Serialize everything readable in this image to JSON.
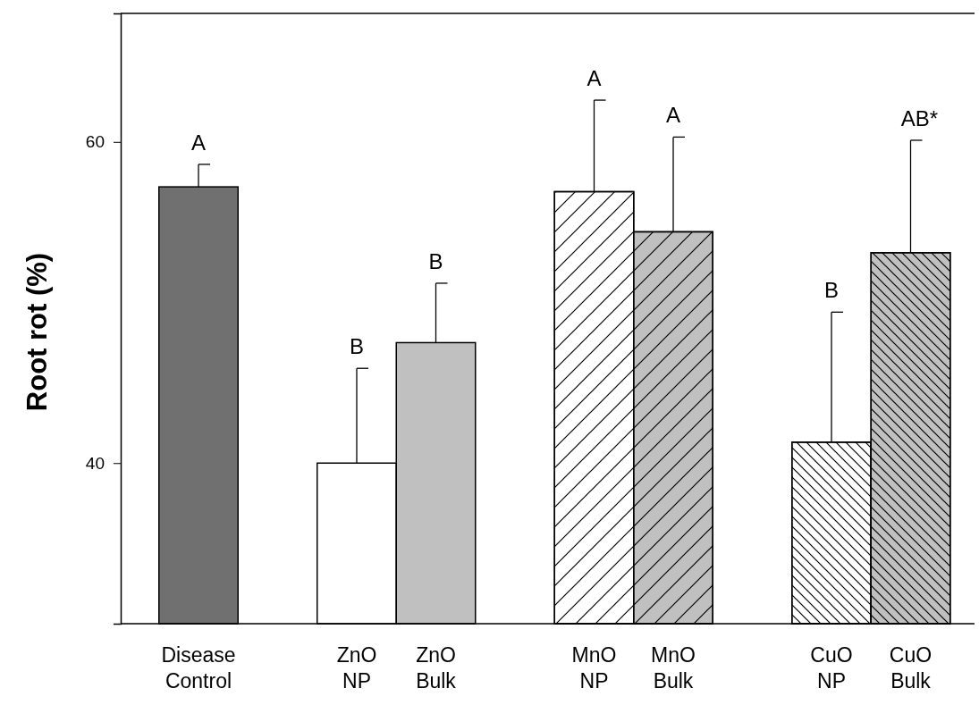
{
  "chart_data": {
    "type": "bar",
    "ylabel": "Root rot (%)",
    "categories": [
      "Disease Control",
      "ZnO NP",
      "ZnO Bulk",
      "MnO NP",
      "MnO Bulk",
      "CuO NP",
      "CuO Bulk"
    ],
    "values": [
      57.2,
      40,
      47.5,
      56.9,
      54.4,
      41.3,
      53.1
    ],
    "errors": [
      1.4,
      5.9,
      3.7,
      5.7,
      5.9,
      8.1,
      7.0
    ],
    "colors": [
      "#707070",
      "#ffffff",
      "#c0c0c0",
      "#ffffff",
      "#c0c0c0",
      "#ffffff",
      "#c0c0c0"
    ],
    "ylim": [
      30,
      68
    ],
    "yticks": [
      40,
      60
    ],
    "grid": false,
    "annotations": [
      {
        "text": "A",
        "x": "Disease Control",
        "y": 58.6
      },
      {
        "text": "B",
        "x": "ZnO NP",
        "y": 45.9
      },
      {
        "text": "B",
        "x": "ZnO Bulk",
        "y": 51.2
      },
      {
        "text": "A",
        "x": "MnO NP",
        "y": 62.6
      },
      {
        "text": "A",
        "x": "MnO Bulk",
        "y": 60.3
      },
      {
        "text": "B",
        "x": "CuO NP",
        "y": 49.4
      },
      {
        "text": "AB*",
        "x": "CuO Bulk",
        "y": 60.1
      }
    ]
  }
}
